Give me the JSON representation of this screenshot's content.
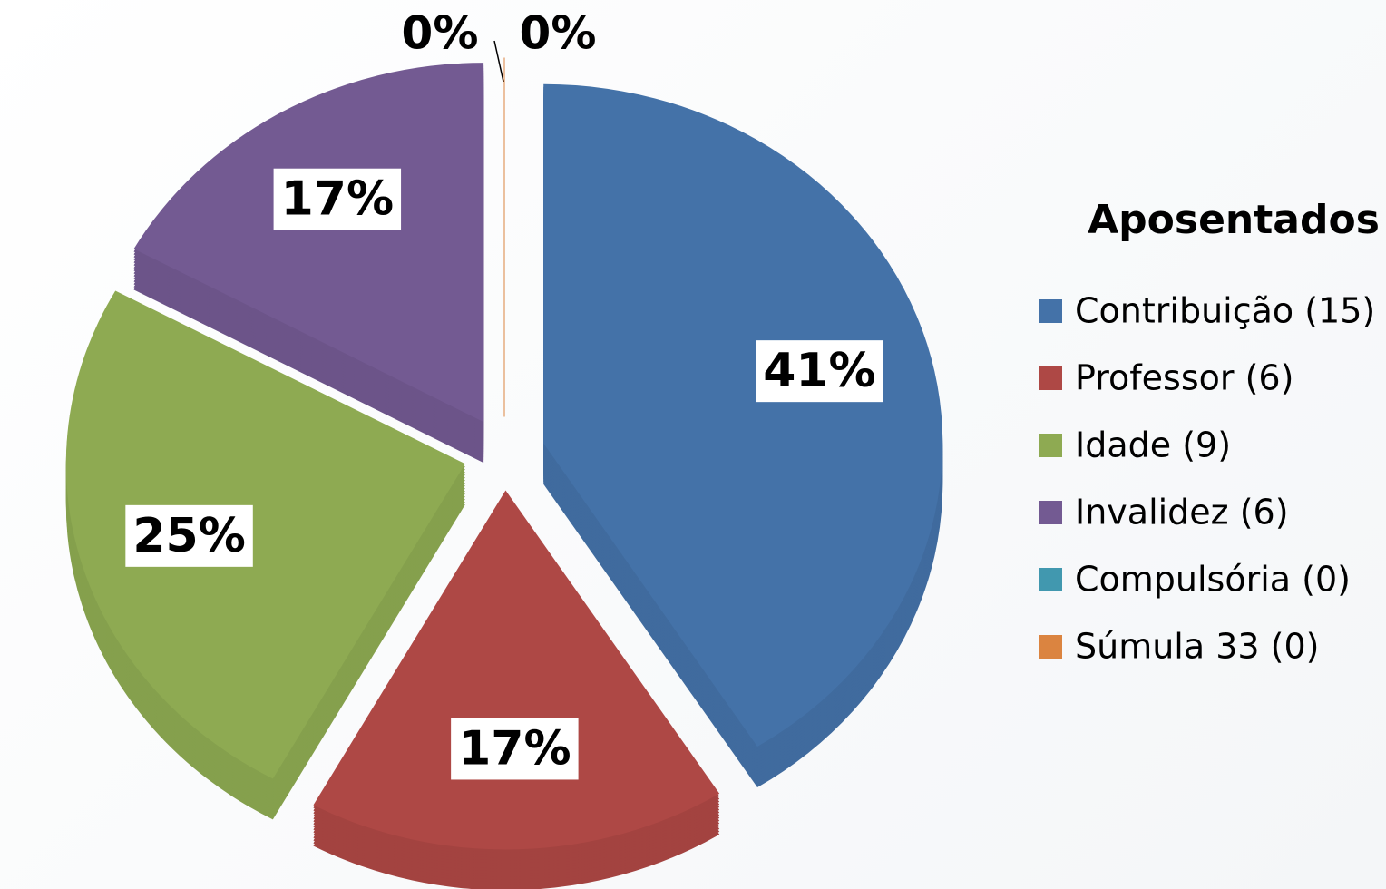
{
  "chart_data": {
    "type": "pie",
    "title": "Aposentados",
    "categories": [
      "Contribuição (15)",
      "Professor (6)",
      "Idade (9)",
      "Invalidez (6)",
      "Compulsória (0)",
      "Súmula 33 (0)"
    ],
    "values": [
      41,
      17,
      25,
      17,
      0,
      0
    ],
    "value_labels": [
      "41%",
      "17%",
      "25%",
      "17%",
      "0%",
      "0%"
    ],
    "colors": [
      "#4472a8",
      "#ae4845",
      "#8eaa52",
      "#735a92",
      "#4198af",
      "#db8440"
    ],
    "legend": "right"
  }
}
